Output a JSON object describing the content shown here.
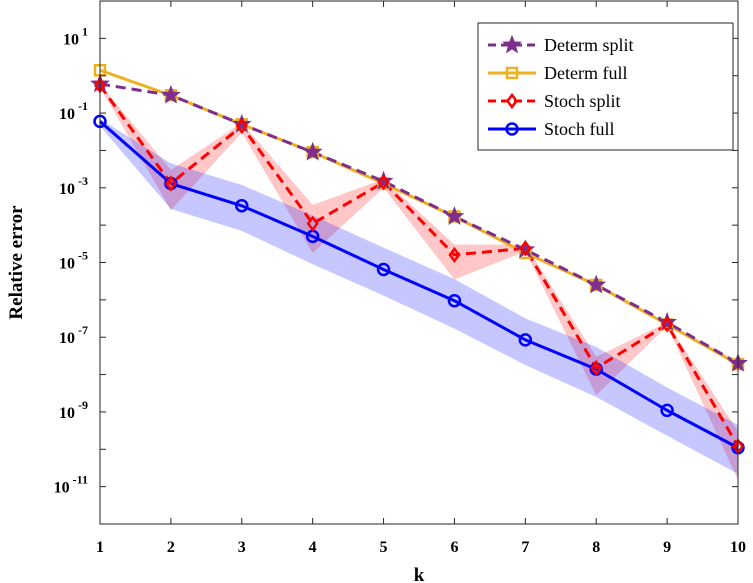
{
  "chart_data": {
    "type": "line",
    "title": "",
    "xlabel": "k",
    "ylabel": "Relative error",
    "x": [
      1,
      2,
      3,
      4,
      5,
      6,
      7,
      8,
      9,
      10
    ],
    "xlim": [
      1,
      10
    ],
    "ylim": [
      1e-12,
      100
    ],
    "yscale": "log",
    "grid": false,
    "legend_position": "top-right",
    "x_ticks": [
      "1",
      "2",
      "3",
      "4",
      "5",
      "6",
      "7",
      "8",
      "9",
      "10"
    ],
    "y_ticks": [
      {
        "base": "10",
        "exp": "1",
        "value": 10
      },
      {
        "base": "10",
        "exp": "-1",
        "value": 0.1
      },
      {
        "base": "10",
        "exp": "-3",
        "value": 0.001
      },
      {
        "base": "10",
        "exp": "-5",
        "value": 1e-05
      },
      {
        "base": "10",
        "exp": "-7",
        "value": 1e-07
      },
      {
        "base": "10",
        "exp": "-9",
        "value": 1e-09
      },
      {
        "base": "10",
        "exp": "-11",
        "value": 1e-11
      }
    ],
    "series": [
      {
        "name": "Determ split",
        "color": "#7e2f8e",
        "dash": "dashed",
        "marker": "star",
        "values": [
          0.6,
          0.3,
          0.05,
          0.009,
          0.0015,
          0.00017,
          2.2e-05,
          2.5e-06,
          2.5e-07,
          2e-08
        ]
      },
      {
        "name": "Determ full",
        "color": "#edb120",
        "dash": "solid",
        "marker": "square",
        "values": [
          1.4,
          0.3,
          0.05,
          0.009,
          0.0013,
          0.00017,
          1.8e-05,
          2.5e-06,
          2.2e-07,
          1.9e-08
        ]
      },
      {
        "name": "Stoch split",
        "color": "#ff0000",
        "dash": "dashed",
        "marker": "diamond",
        "values": [
          0.55,
          0.0013,
          0.045,
          0.00011,
          0.0014,
          1.6e-05,
          2.4e-05,
          1.5e-08,
          2.2e-07,
          1.2e-10
        ],
        "band_lower": [
          0.5,
          0.00025,
          0.03,
          1.8e-05,
          0.001,
          3.5e-06,
          2e-05,
          2.8e-09,
          2e-07,
          1.5e-11
        ],
        "band_upper": [
          0.6,
          0.003,
          0.055,
          0.00035,
          0.0017,
          3e-05,
          3e-05,
          3e-08,
          2.5e-07,
          3e-10
        ],
        "band_color": "#ff0000"
      },
      {
        "name": "Stoch full",
        "color": "#0000ff",
        "dash": "solid",
        "marker": "circle",
        "values": [
          0.06,
          0.0013,
          0.00033,
          5e-05,
          6.5e-06,
          9.5e-07,
          8.5e-08,
          1.4e-08,
          1.1e-09,
          1.1e-10
        ],
        "band_lower": [
          0.045,
          0.00027,
          7e-05,
          9e-06,
          1.3e-06,
          1.7e-07,
          1.8e-08,
          2.5e-09,
          2.3e-10,
          2.2e-11
        ],
        "band_upper": [
          0.07,
          0.0045,
          0.0012,
          0.00018,
          2.5e-05,
          3.6e-06,
          3.2e-07,
          5.5e-08,
          4.5e-09,
          4.5e-10
        ],
        "band_color": "#0000ff"
      }
    ]
  }
}
